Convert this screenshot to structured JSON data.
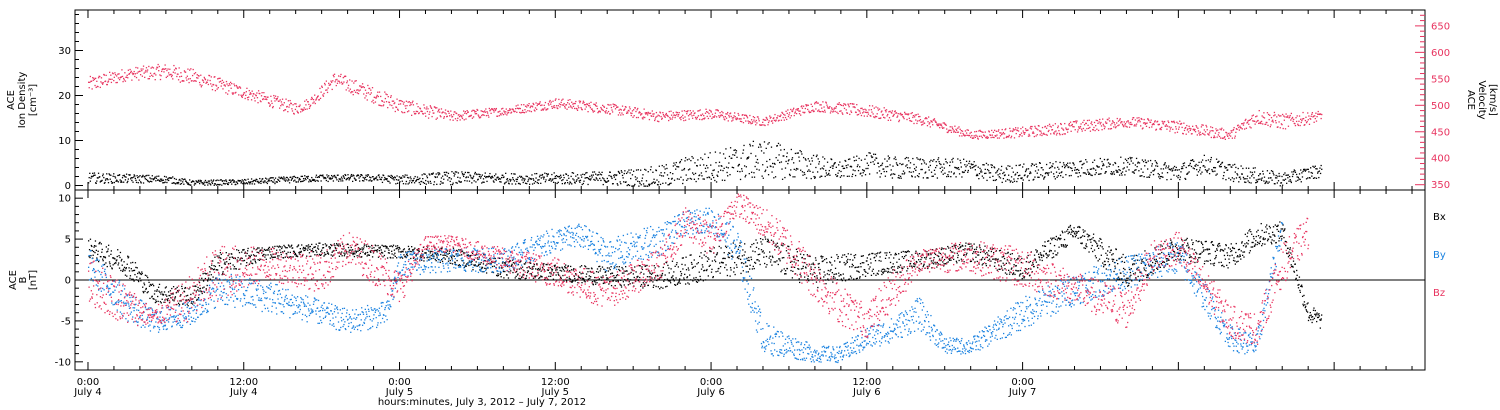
{
  "chart_data": [
    {
      "type": "scatter",
      "panel": "top",
      "ylabel_left": [
        "ACE",
        "Ion Density",
        "[cm⁻³]"
      ],
      "ylabel_right": [
        "ACE",
        "Velocity",
        "[km/s]"
      ],
      "y_left_ticks": [
        "0",
        "10",
        "20",
        "30"
      ],
      "y_left_lim": [
        -1,
        39
      ],
      "y_right_ticks": [
        "350",
        "400",
        "450",
        "500",
        "550",
        "600",
        "650"
      ],
      "y_right_lim": [
        340,
        680
      ],
      "grid": false,
      "colors": {
        "density": "#000000",
        "velocity": "#e8335f"
      },
      "series": [
        {
          "key": "density",
          "axis": "left",
          "x_hours": [
            0,
            6,
            8,
            12,
            18,
            22,
            24,
            28,
            30,
            34,
            40,
            44,
            46,
            52,
            58,
            60,
            62,
            64,
            68,
            70,
            76,
            80,
            84,
            86,
            88,
            92,
            95
          ],
          "values": [
            1.8,
            1.5,
            0.7,
            0.9,
            1.8,
            1.8,
            1.4,
            1.8,
            1.8,
            1.6,
            1.8,
            2.0,
            3.5,
            6.0,
            3.5,
            5.0,
            4.0,
            4.0,
            4.0,
            2.5,
            4.0,
            4.5,
            3.0,
            5.0,
            3.0,
            1.5,
            3.5
          ],
          "spread": [
            1.2,
            0.8,
            0.6,
            0.6,
            0.8,
            0.8,
            1.0,
            1.5,
            1.2,
            1.2,
            1.5,
            2.5,
            3.0,
            4.5,
            2.0,
            2.5,
            2.5,
            2.5,
            2.0,
            2.0,
            2.0,
            2.0,
            2.0,
            2.0,
            2.0,
            1.5,
            1.5
          ]
        },
        {
          "key": "velocity",
          "axis": "right",
          "x_hours": [
            0,
            3,
            6,
            8,
            12,
            16,
            17,
            19,
            24,
            28,
            32,
            36,
            40,
            44,
            48,
            52,
            56,
            60,
            64,
            68,
            72,
            76,
            80,
            84,
            88,
            90,
            92,
            95
          ],
          "values": [
            540,
            560,
            565,
            555,
            525,
            495,
            505,
            550,
            500,
            480,
            490,
            505,
            495,
            480,
            485,
            470,
            500,
            490,
            475,
            445,
            450,
            460,
            470,
            460,
            445,
            480,
            470,
            480
          ],
          "spread": [
            15,
            12,
            15,
            15,
            12,
            12,
            10,
            15,
            15,
            10,
            8,
            10,
            10,
            10,
            10,
            8,
            10,
            12,
            10,
            8,
            10,
            12,
            10,
            12,
            10,
            15,
            15,
            10
          ]
        }
      ]
    },
    {
      "type": "scatter",
      "panel": "bottom",
      "ylabel": [
        "ACE",
        "B",
        "[nT]"
      ],
      "y_ticks": [
        "-10",
        "-5",
        "0",
        "5",
        "10"
      ],
      "ylim": [
        -11,
        11
      ],
      "zero_line": true,
      "grid": false,
      "colors": {
        "bx": "#000000",
        "by": "#1a82e0",
        "bz": "#e8335f"
      },
      "legend": {
        "placement": "right",
        "labels": [
          "Bx",
          "By",
          "Bz"
        ]
      },
      "series": [
        {
          "key": "bx",
          "name": "Bx",
          "x_hours": [
            0,
            3,
            5,
            8,
            10,
            14,
            18,
            24,
            28,
            32,
            36,
            40,
            44,
            48,
            52,
            56,
            60,
            64,
            68,
            72,
            76,
            80,
            84,
            88,
            90,
            92,
            94,
            95
          ],
          "values": [
            4.0,
            2.0,
            -1.5,
            -2.0,
            2.0,
            3.5,
            3.8,
            3.5,
            3.0,
            1.5,
            1.0,
            0.5,
            0.5,
            2.0,
            3.5,
            1.0,
            2.0,
            2.5,
            3.5,
            1.5,
            6.0,
            1.0,
            4.0,
            3.0,
            5.5,
            6.0,
            -4.0,
            -5.0
          ],
          "spread": [
            1.2,
            1.5,
            1.2,
            1.2,
            1.5,
            0.8,
            0.8,
            0.8,
            1.0,
            1.2,
            1.0,
            1.2,
            1.5,
            2.0,
            2.0,
            2.0,
            1.5,
            1.2,
            1.2,
            1.5,
            1.2,
            2.0,
            1.5,
            1.5,
            1.5,
            1.2,
            1.2,
            1.0
          ]
        },
        {
          "key": "by",
          "name": "By",
          "x_hours": [
            0,
            3,
            5,
            8,
            10,
            14,
            18,
            20,
            23,
            24,
            28,
            32,
            36,
            38,
            40,
            44,
            46,
            48,
            50,
            52,
            56,
            58,
            60,
            62,
            64,
            66,
            68,
            72,
            76,
            80,
            84,
            88,
            90,
            92
          ],
          "values": [
            2.0,
            -3.0,
            -5.0,
            -4.0,
            -1.0,
            -2.0,
            -4.0,
            -5.0,
            -4.0,
            2.0,
            2.5,
            2.5,
            5.0,
            5.5,
            3.0,
            5.0,
            7.0,
            7.5,
            4.0,
            -7.0,
            -9.0,
            -9.0,
            -7.0,
            -6.0,
            -4.0,
            -8.0,
            -8.0,
            -4.0,
            -1.0,
            1.0,
            3.0,
            -7.0,
            -8.0,
            7.0
          ],
          "spread": [
            2.0,
            2.0,
            1.5,
            1.5,
            2.0,
            2.0,
            1.5,
            1.5,
            1.5,
            1.5,
            1.5,
            1.5,
            1.5,
            1.5,
            2.0,
            2.0,
            1.5,
            1.5,
            2.5,
            2.0,
            1.0,
            1.0,
            1.5,
            1.5,
            2.0,
            1.0,
            1.0,
            2.0,
            2.0,
            2.0,
            2.0,
            1.5,
            1.5,
            1.5
          ]
        },
        {
          "key": "bz",
          "name": "Bz",
          "x_hours": [
            0,
            3,
            5,
            8,
            10,
            14,
            18,
            20,
            22,
            24,
            26,
            28,
            32,
            36,
            40,
            44,
            46,
            48,
            50,
            52,
            54,
            56,
            58,
            60,
            62,
            64,
            68,
            72,
            76,
            80,
            82,
            84,
            88,
            90,
            92,
            94
          ],
          "values": [
            0.0,
            -3.0,
            -4.5,
            -2.0,
            1.0,
            2.0,
            1.0,
            4.0,
            2.0,
            -1.0,
            4.5,
            4.5,
            2.5,
            1.0,
            -1.5,
            2.0,
            7.0,
            5.0,
            9.5,
            7.0,
            4.0,
            0.0,
            -3.0,
            -5.0,
            -1.0,
            2.5,
            3.0,
            1.5,
            -1.0,
            -3.5,
            3.0,
            4.0,
            -5.0,
            -6.0,
            2.0,
            6.0
          ],
          "spread": [
            3.0,
            2.5,
            1.0,
            3.0,
            3.5,
            2.0,
            2.5,
            2.0,
            2.5,
            2.0,
            1.0,
            1.0,
            1.5,
            2.0,
            2.0,
            2.0,
            2.0,
            2.0,
            1.5,
            2.0,
            2.5,
            2.5,
            2.5,
            2.0,
            2.5,
            1.5,
            2.0,
            2.5,
            2.0,
            2.5,
            2.0,
            2.0,
            2.0,
            2.0,
            2.5,
            2.0
          ]
        }
      ]
    }
  ],
  "x_axis": {
    "range_hours": [
      -1,
      103
    ],
    "ticks": [
      {
        "hour": 0,
        "time": "0:00",
        "date": "July 4"
      },
      {
        "hour": 12,
        "time": "12:00",
        "date": "July 4"
      },
      {
        "hour": 24,
        "time": "0:00",
        "date": "July 5"
      },
      {
        "hour": 36,
        "time": "12:00",
        "date": "July 5"
      },
      {
        "hour": 48,
        "time": "0:00",
        "date": "July 6"
      },
      {
        "hour": 60,
        "time": "12:00",
        "date": "July 6"
      },
      {
        "hour": 72,
        "time": "0:00",
        "date": "July 7"
      }
    ],
    "label": "hours:minutes,  July  3, 2012  –  July  7, 2012"
  }
}
